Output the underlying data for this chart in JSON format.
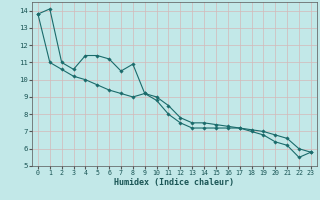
{
  "xlabel": "Humidex (Indice chaleur)",
  "ylabel": "",
  "bg_color": "#c2e8e8",
  "line_color": "#1a6b6b",
  "grid_color": "#d4b8b8",
  "xlim": [
    -0.5,
    23.5
  ],
  "ylim": [
    5,
    14.5
  ],
  "yticks": [
    5,
    6,
    7,
    8,
    9,
    10,
    11,
    12,
    13,
    14
  ],
  "xticks": [
    0,
    1,
    2,
    3,
    4,
    5,
    6,
    7,
    8,
    9,
    10,
    11,
    12,
    13,
    14,
    15,
    16,
    17,
    18,
    19,
    20,
    21,
    22,
    23
  ],
  "series1_x": [
    0,
    1,
    2,
    3,
    4,
    5,
    6,
    7,
    8,
    9,
    10,
    11,
    12,
    13,
    14,
    15,
    16,
    17,
    18,
    19,
    20,
    21,
    22,
    23
  ],
  "series1_y": [
    13.8,
    14.1,
    11.0,
    10.6,
    11.4,
    11.4,
    11.2,
    10.5,
    10.9,
    9.2,
    8.8,
    8.0,
    7.5,
    7.2,
    7.2,
    7.2,
    7.2,
    7.2,
    7.0,
    6.8,
    6.4,
    6.2,
    5.5,
    5.8
  ],
  "series2_x": [
    0,
    1,
    2,
    3,
    4,
    5,
    6,
    7,
    8,
    9,
    10,
    11,
    12,
    13,
    14,
    15,
    16,
    17,
    18,
    19,
    20,
    21,
    22,
    23
  ],
  "series2_y": [
    13.8,
    11.0,
    10.6,
    10.2,
    10.0,
    9.7,
    9.4,
    9.2,
    9.0,
    9.2,
    9.0,
    8.5,
    7.8,
    7.5,
    7.5,
    7.4,
    7.3,
    7.2,
    7.1,
    7.0,
    6.8,
    6.6,
    6.0,
    5.8
  ]
}
